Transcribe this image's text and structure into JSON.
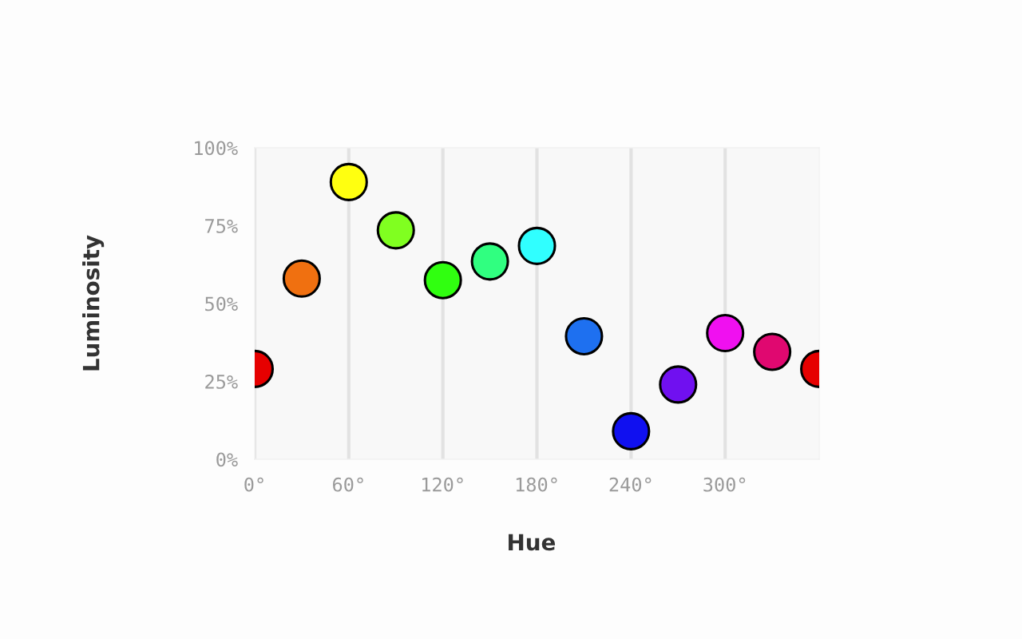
{
  "chart_data": {
    "type": "scatter",
    "xlabel": "Hue",
    "ylabel": "Luminosity",
    "x": [
      0,
      30,
      60,
      90,
      120,
      150,
      180,
      210,
      240,
      270,
      300,
      330,
      360
    ],
    "values": [
      29,
      58,
      89,
      73.5,
      57.5,
      63.5,
      68.5,
      39.5,
      9,
      24,
      40.5,
      34.5,
      29
    ],
    "colors": [
      "#e60000",
      "#f07010",
      "#ffff10",
      "#80ff20",
      "#30ff10",
      "#30ff80",
      "#30ffff",
      "#1e70f0",
      "#1010f0",
      "#7010f0",
      "#f010f0",
      "#e00870",
      "#e60000"
    ],
    "xlim": [
      0,
      360
    ],
    "ylim": [
      0,
      100
    ],
    "xticks": [
      {
        "value": 0,
        "label": "0°"
      },
      {
        "value": 60,
        "label": "60°"
      },
      {
        "value": 120,
        "label": "120°"
      },
      {
        "value": 180,
        "label": "180°"
      },
      {
        "value": 240,
        "label": "240°"
      },
      {
        "value": 300,
        "label": "300°"
      }
    ],
    "yticks": [
      {
        "value": 0,
        "label": "0%"
      },
      {
        "value": 25,
        "label": "25%"
      },
      {
        "value": 50,
        "label": "50%"
      },
      {
        "value": 75,
        "label": "75%"
      },
      {
        "value": 100,
        "label": "100%"
      }
    ],
    "grid": "x",
    "marker": "circle"
  }
}
